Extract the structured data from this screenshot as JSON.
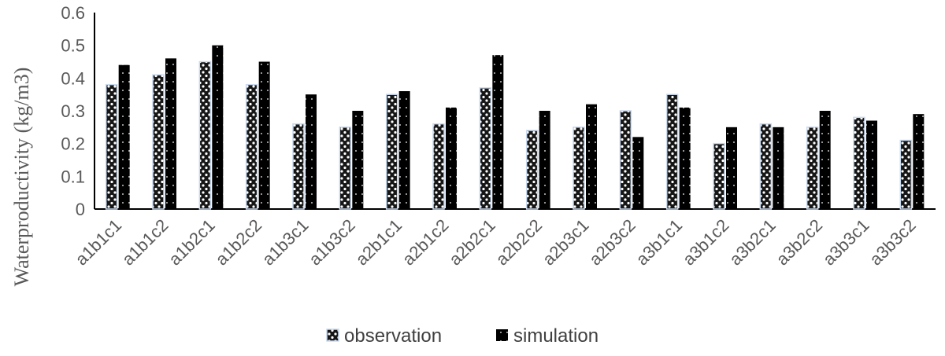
{
  "chart_data": {
    "type": "bar",
    "ylabel": "Waterproductivity (kg/m3)",
    "xlabel": "",
    "ylim": [
      0,
      0.6
    ],
    "yticks": [
      "0",
      "0.1",
      "0.2",
      "0.3",
      "0.4",
      "0.5",
      "0.6"
    ],
    "grid": false,
    "legend_position": "bottom",
    "categories": [
      "a1b1c1",
      "a1b1c2",
      "a1b2c1",
      "a1b2c2",
      "a1b3c1",
      "a1b3c2",
      "a2b1c1",
      "a2b1c2",
      "a2b2c1",
      "a2b2c2",
      "a2b3c1",
      "a2b3c2",
      "a3b1c1",
      "a3b1c2",
      "a3b2c1",
      "a3b2c2",
      "a3b3c1",
      "a3b3c2"
    ],
    "series": [
      {
        "name": "observation",
        "color": "#111111",
        "pattern": "dotted-white-outline",
        "values": [
          0.38,
          0.41,
          0.45,
          0.38,
          0.26,
          0.25,
          0.35,
          0.26,
          0.37,
          0.24,
          0.25,
          0.3,
          0.35,
          0.2,
          0.26,
          0.25,
          0.28,
          0.21
        ]
      },
      {
        "name": "simulation",
        "color": "#000000",
        "pattern": "solid-with-white-dots",
        "values": [
          0.44,
          0.46,
          0.5,
          0.45,
          0.35,
          0.3,
          0.36,
          0.31,
          0.47,
          0.3,
          0.32,
          0.22,
          0.31,
          0.25,
          0.25,
          0.3,
          0.27,
          0.29
        ]
      }
    ]
  }
}
